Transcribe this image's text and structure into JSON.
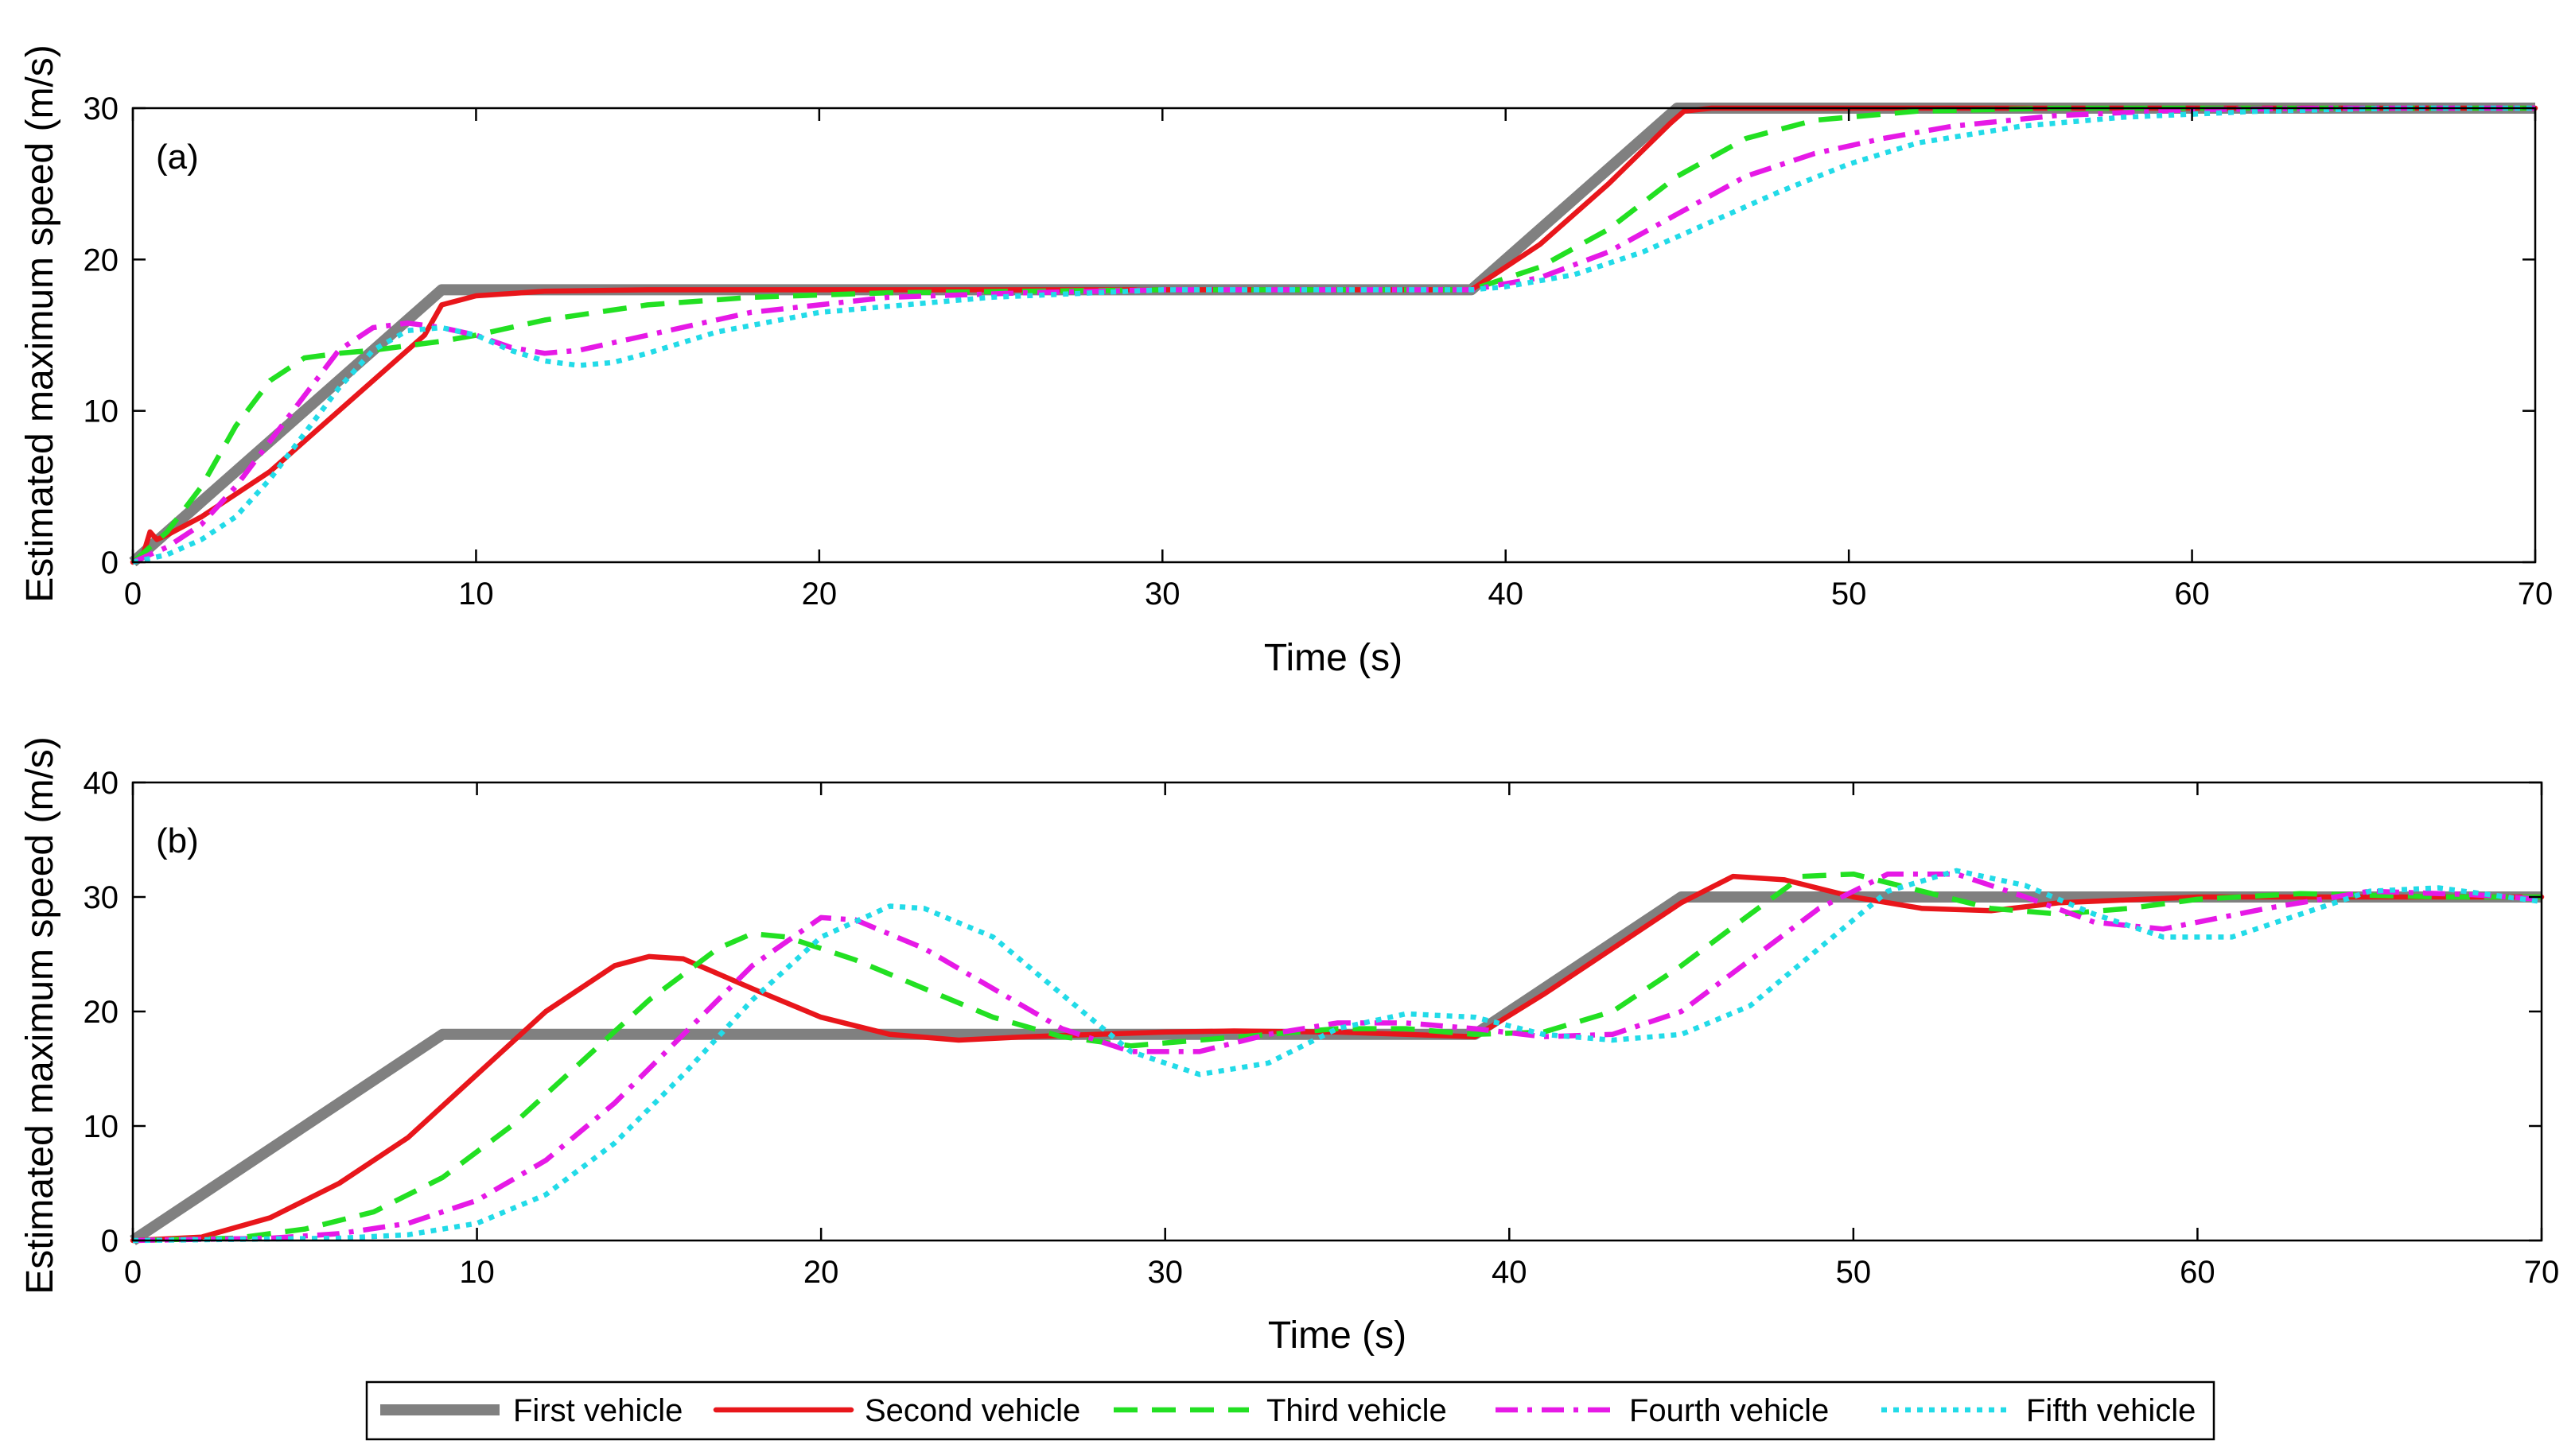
{
  "chart_data": [
    {
      "type": "line",
      "panel_label": "(a)",
      "xlabel": "Time (s)",
      "ylabel": "Estimated maximum speed (m/s)",
      "xlim": [
        0,
        70
      ],
      "ylim": [
        0,
        30
      ],
      "xticks": [
        0,
        10,
        20,
        30,
        40,
        50,
        60,
        70
      ],
      "yticks": [
        0,
        10,
        20,
        30
      ],
      "series": [
        {
          "name": "First vehicle",
          "x": [
            0,
            9,
            39,
            45,
            70
          ],
          "y": [
            0,
            18,
            18,
            30,
            30
          ]
        },
        {
          "name": "Second vehicle",
          "x": [
            0,
            0.3,
            0.5,
            0.7,
            1,
            2,
            4,
            6,
            8.5,
            9,
            10,
            12,
            15,
            20,
            30,
            39,
            41,
            43,
            44.8,
            45.2,
            46,
            50,
            70
          ],
          "y": [
            0,
            0.5,
            2,
            1.5,
            1.8,
            3,
            6,
            10,
            15,
            17,
            17.6,
            17.9,
            18,
            18,
            18,
            18,
            21,
            25,
            29,
            29.8,
            30,
            30,
            30
          ]
        },
        {
          "name": "Third vehicle",
          "x": [
            0,
            1,
            2,
            3,
            4,
            5,
            6,
            7,
            8,
            9,
            10,
            12,
            15,
            18,
            22,
            30,
            39,
            41,
            43,
            45,
            47,
            49,
            52,
            56,
            60,
            70
          ],
          "y": [
            0,
            2,
            5,
            9,
            12,
            13.5,
            13.8,
            14,
            14.3,
            14.6,
            15,
            16,
            17,
            17.5,
            17.8,
            18,
            18,
            19.5,
            22,
            25.5,
            28,
            29.2,
            29.8,
            30,
            30,
            30
          ]
        },
        {
          "name": "Fourth vehicle",
          "x": [
            0,
            1,
            2,
            3,
            4,
            5,
            6,
            7,
            8,
            9,
            10,
            11,
            12,
            13,
            15,
            18,
            22,
            26,
            30,
            39,
            41,
            43,
            45,
            47,
            49,
            51,
            53,
            56,
            60,
            64,
            70
          ],
          "y": [
            0,
            1,
            2.5,
            5,
            8,
            11,
            14,
            15.5,
            15.8,
            15.5,
            15,
            14.2,
            13.8,
            14,
            15,
            16.5,
            17.5,
            17.8,
            18,
            18,
            18.8,
            20.5,
            23,
            25.5,
            27,
            28,
            28.8,
            29.5,
            29.9,
            30,
            30
          ]
        },
        {
          "name": "Fifth vehicle",
          "x": [
            0,
            1,
            2,
            3,
            4,
            5,
            6,
            7,
            8,
            9,
            10,
            11,
            12,
            13,
            14,
            15,
            17,
            20,
            25,
            30,
            39,
            40,
            42,
            44,
            46,
            48,
            50,
            52,
            55,
            58,
            62,
            66,
            70
          ],
          "y": [
            0,
            0.5,
            1.5,
            3,
            5.5,
            8.5,
            11.5,
            14,
            15.3,
            15.5,
            15,
            14,
            13.3,
            13,
            13.2,
            13.8,
            15.2,
            16.5,
            17.5,
            18,
            18,
            18.2,
            19,
            20.5,
            22.5,
            24.5,
            26.3,
            27.7,
            28.8,
            29.4,
            29.8,
            30,
            30
          ]
        }
      ]
    },
    {
      "type": "line",
      "panel_label": "(b)",
      "xlabel": "Time (s)",
      "ylabel": "Estimated maximum speed (m/s)",
      "xlim": [
        0,
        70
      ],
      "ylim": [
        0,
        40
      ],
      "xticks": [
        0,
        10,
        20,
        30,
        40,
        50,
        60,
        70
      ],
      "yticks": [
        0,
        10,
        20,
        30,
        40
      ],
      "series": [
        {
          "name": "First vehicle",
          "x": [
            0,
            9,
            39,
            45,
            70
          ],
          "y": [
            0,
            18,
            18,
            30,
            30
          ]
        },
        {
          "name": "Second vehicle",
          "x": [
            0,
            2,
            4,
            6,
            8,
            10,
            12,
            14,
            15,
            16,
            18,
            20,
            22,
            24,
            26,
            28,
            30,
            32,
            35,
            37,
            39,
            41,
            43,
            45,
            46.5,
            48,
            50,
            52,
            54,
            56,
            60,
            65,
            70
          ],
          "y": [
            0,
            0.3,
            2,
            5,
            9,
            14.5,
            20,
            24,
            24.8,
            24.6,
            22,
            19.5,
            18,
            17.5,
            17.8,
            18,
            18.2,
            18.3,
            18.2,
            18,
            17.8,
            21.5,
            25.5,
            29.5,
            31.8,
            31.5,
            30,
            29,
            28.8,
            29.5,
            30,
            30,
            30
          ]
        },
        {
          "name": "Third vehicle",
          "x": [
            0,
            3,
            5,
            7,
            9,
            11,
            13,
            15,
            17,
            18,
            19,
            21,
            23,
            25,
            27,
            29,
            31,
            33,
            35,
            37,
            39,
            41,
            43,
            45,
            47,
            48.5,
            50,
            52,
            54,
            56,
            58,
            60,
            63,
            67,
            70
          ],
          "y": [
            0,
            0.2,
            1,
            2.5,
            5.5,
            10,
            15.5,
            21,
            25.5,
            26.8,
            26.5,
            24.5,
            22,
            19.5,
            17.8,
            17,
            17.5,
            18,
            18.5,
            18.5,
            18,
            18.2,
            20,
            24,
            28.5,
            31.8,
            32,
            30.5,
            29,
            28.5,
            29,
            29.8,
            30.3,
            30,
            30
          ]
        },
        {
          "name": "Fourth vehicle",
          "x": [
            0,
            4,
            6,
            8,
            10,
            12,
            14,
            16,
            18,
            20,
            21,
            23,
            25,
            27,
            29,
            31,
            33,
            35,
            37,
            39,
            41,
            43,
            45,
            47,
            49,
            51,
            53,
            55,
            57,
            59,
            62,
            65,
            68,
            70
          ],
          "y": [
            0,
            0.2,
            0.6,
            1.5,
            3.5,
            7,
            12,
            18,
            24,
            28.2,
            28,
            25.5,
            22,
            18.5,
            16.5,
            16.5,
            18,
            19,
            19,
            18.5,
            17.8,
            18,
            20,
            24.5,
            29,
            32,
            32,
            30,
            27.8,
            27.2,
            29,
            30.5,
            30.2,
            29.8
          ]
        },
        {
          "name": "Fifth vehicle",
          "x": [
            0,
            6,
            8,
            10,
            12,
            14,
            16,
            18,
            20,
            22,
            23,
            25,
            27,
            29,
            31,
            33,
            35,
            37,
            39,
            41,
            43,
            45,
            47,
            49,
            51,
            53,
            55,
            57,
            59,
            61,
            63,
            65,
            67,
            69,
            70
          ],
          "y": [
            0,
            0.2,
            0.5,
            1.5,
            4,
            8.5,
            14.5,
            21,
            26.5,
            29.2,
            29,
            26.5,
            21.5,
            16.5,
            14.5,
            15.5,
            18.5,
            19.8,
            19.5,
            18,
            17.5,
            18,
            20.5,
            25.5,
            30.5,
            32.3,
            31,
            28.5,
            26.5,
            26.5,
            28.5,
            30.5,
            30.8,
            30,
            29.6
          ]
        }
      ]
    }
  ],
  "legend": {
    "location": "bottom-center",
    "entries": [
      {
        "label": "First vehicle",
        "color": "#808080",
        "style": "solid-thick"
      },
      {
        "label": "Second vehicle",
        "color": "#e8161b",
        "style": "solid"
      },
      {
        "label": "Third vehicle",
        "color": "#22e022",
        "style": "dashed"
      },
      {
        "label": "Fourth vehicle",
        "color": "#e619e6",
        "style": "dash-dot"
      },
      {
        "label": "Fifth vehicle",
        "color": "#22dbe8",
        "style": "dotted"
      }
    ]
  }
}
